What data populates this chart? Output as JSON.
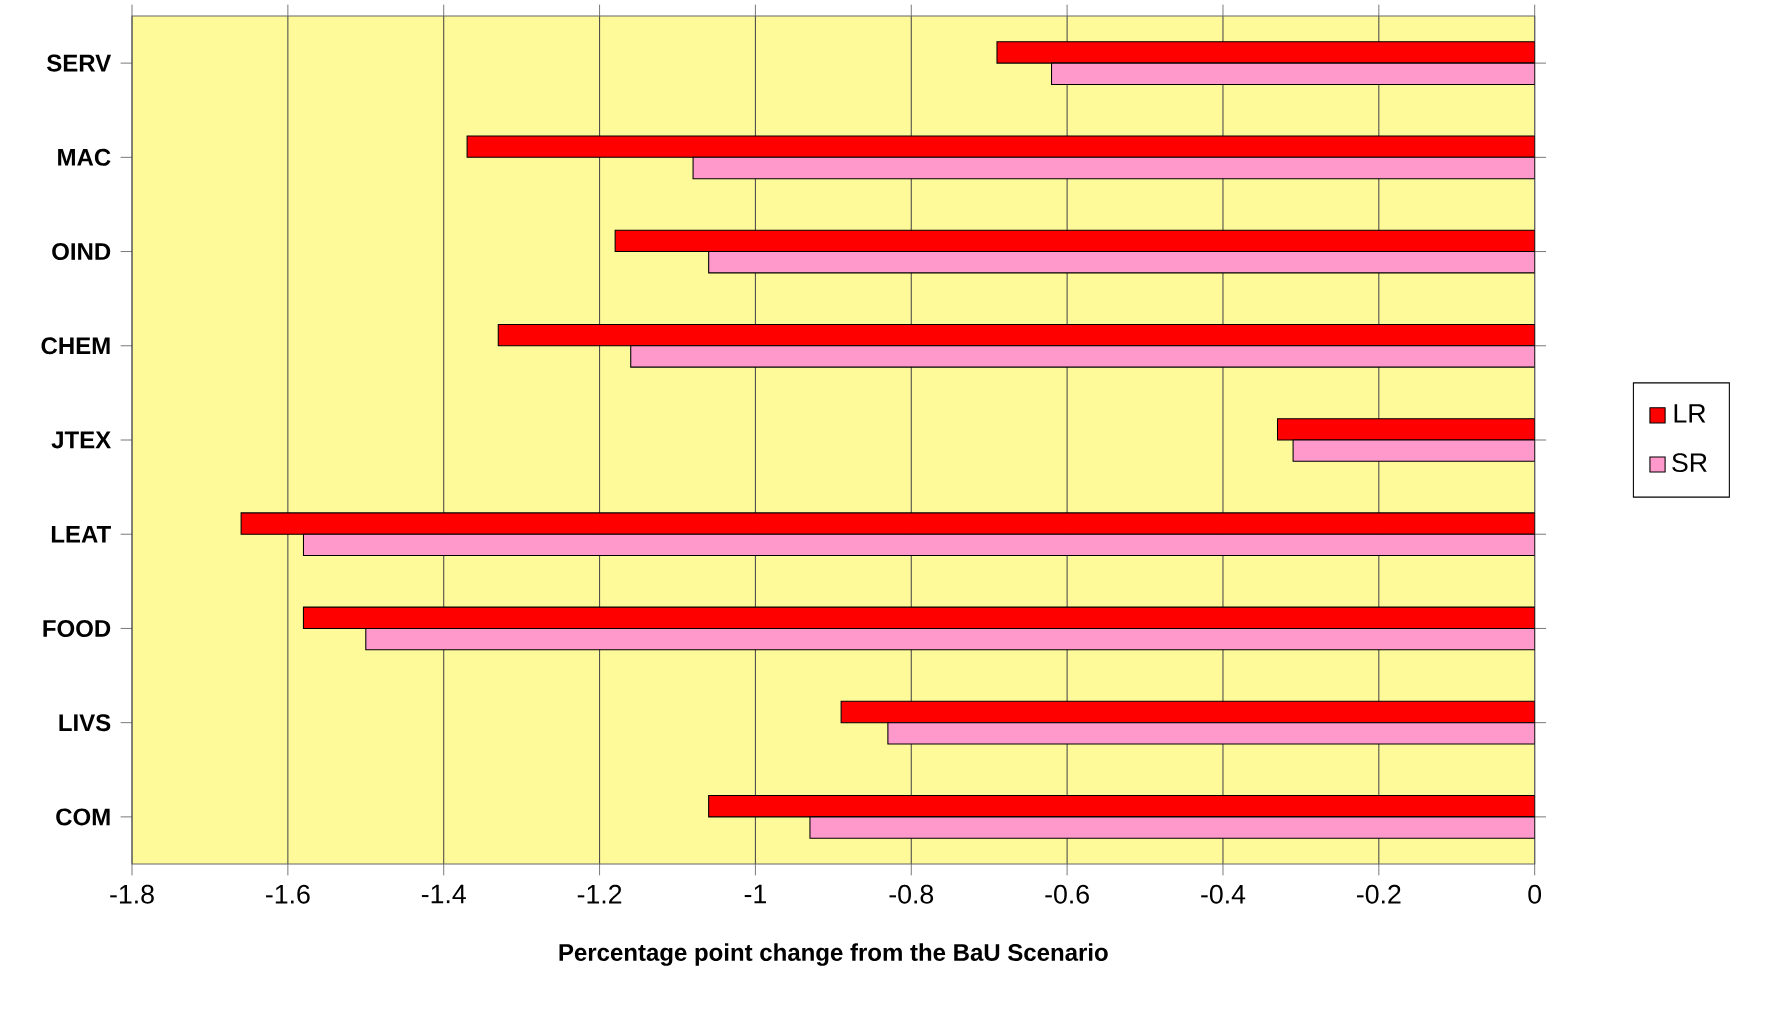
{
  "chart_data": {
    "type": "bar",
    "orientation": "horizontal",
    "xlabel": "Percentage point change from the BaU Scenario",
    "categories": [
      "SERV",
      "MAC",
      "OIND",
      "CHEM",
      "JTEX",
      "LEAT",
      "FOOD",
      "LIVS",
      "COM"
    ],
    "series": [
      {
        "name": "LR",
        "color": "#ff0000",
        "values": [
          -0.69,
          -1.37,
          -1.18,
          -1.33,
          -0.33,
          -1.66,
          -1.58,
          -0.89,
          -1.06
        ]
      },
      {
        "name": "SR",
        "color": "#ff99cc",
        "values": [
          -0.62,
          -1.08,
          -1.06,
          -1.16,
          -0.31,
          -1.58,
          -1.5,
          -0.83,
          -0.93
        ]
      }
    ],
    "xlim": [
      -1.8,
      0
    ],
    "xticks": [
      -1.8,
      -1.6,
      -1.4,
      -1.2,
      -1,
      -0.8,
      -0.6,
      -0.4,
      -0.2,
      0
    ],
    "grid": "x",
    "legend": "right"
  }
}
